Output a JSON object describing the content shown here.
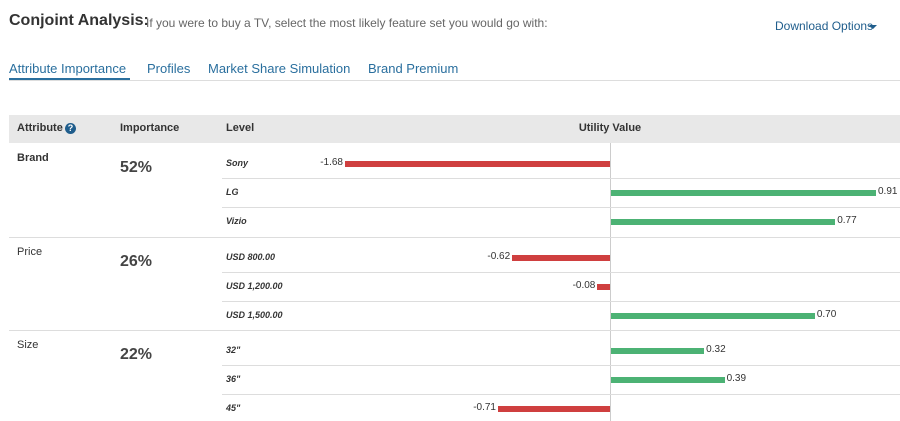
{
  "header": {
    "title": "Conjoint Analysis:",
    "subtitle": "If you were to buy a TV, select the most likely feature set you would go with:",
    "download": "Download Options"
  },
  "tabs": [
    "Attribute Importance",
    "Profiles",
    "Market Share Simulation",
    "Brand Premium"
  ],
  "table": {
    "columns": [
      "Attribute",
      "Importance",
      "Level",
      "Utility Value"
    ],
    "groups": [
      {
        "attribute": "Brand",
        "importance": "52%",
        "levels": [
          {
            "label": "Sony",
            "utility": -1.68
          },
          {
            "label": "LG",
            "utility": 0.91
          },
          {
            "label": "Vizio",
            "utility": 0.77
          }
        ]
      },
      {
        "attribute": "Price",
        "importance": "26%",
        "levels": [
          {
            "label": "USD 800.00",
            "utility": -0.62
          },
          {
            "label": "USD 1,200.00",
            "utility": -0.08
          },
          {
            "label": "USD 1,500.00",
            "utility": 0.7,
            "utility_label": "0.70"
          }
        ]
      },
      {
        "attribute": "Size",
        "importance": "22%",
        "levels": [
          {
            "label": "32\"",
            "utility": 0.32
          },
          {
            "label": "36\"",
            "utility": 0.39
          },
          {
            "label": "45\"",
            "utility": -0.71
          }
        ]
      }
    ]
  }
}
